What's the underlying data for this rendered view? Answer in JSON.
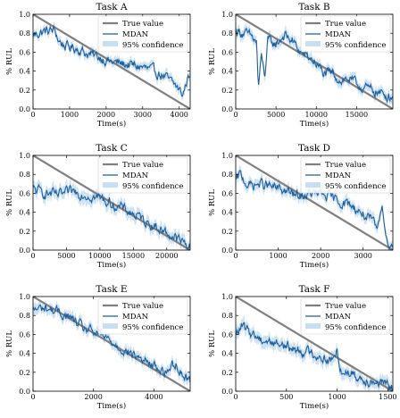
{
  "colors": {
    "true_value": "#7f7f7f",
    "mdan": "#1f5f9b",
    "confidence": "#c8dff2"
  },
  "chart_data": [
    {
      "type": "line",
      "title": "Task A",
      "xlabel": "Time(s)",
      "ylabel": "% RUL",
      "xlim": [
        0,
        4300
      ],
      "ylim": [
        0,
        1.0
      ],
      "xticks": [
        0,
        1000,
        2000,
        3000,
        4000
      ],
      "yticks": [
        0.0,
        0.2,
        0.4,
        0.6,
        0.8,
        1.0
      ],
      "grid": false,
      "legend": "top-right",
      "series": [
        {
          "name": "True value",
          "x": [
            0,
            4300
          ],
          "y": [
            1.0,
            0.0
          ]
        },
        {
          "name": "MDAN",
          "x": [
            0,
            300,
            600,
            700,
            900,
            1200,
            1500,
            1800,
            2100,
            2400,
            2700,
            3000,
            3300,
            3600,
            3900,
            4100,
            4200,
            4300
          ],
          "y": [
            0.78,
            0.82,
            0.83,
            0.72,
            0.66,
            0.64,
            0.58,
            0.55,
            0.5,
            0.48,
            0.46,
            0.44,
            0.4,
            0.34,
            0.25,
            0.15,
            0.28,
            0.4
          ]
        },
        {
          "name": "95% confidence",
          "band_halfwidth": 0.05
        }
      ]
    },
    {
      "type": "line",
      "title": "Task B",
      "xlabel": "Time(s)",
      "ylabel": "% RUL",
      "xlim": [
        0,
        19500
      ],
      "ylim": [
        0,
        1.0
      ],
      "xticks": [
        0,
        5000,
        10000,
        15000
      ],
      "yticks": [
        0.0,
        0.2,
        0.4,
        0.6,
        0.8,
        1.0
      ],
      "grid": false,
      "legend": "top-right",
      "series": [
        {
          "name": "True value",
          "x": [
            0,
            19500
          ],
          "y": [
            1.0,
            0.0
          ]
        },
        {
          "name": "MDAN",
          "x": [
            0,
            1000,
            2000,
            2600,
            2800,
            3200,
            3600,
            4000,
            5000,
            6000,
            7000,
            8000,
            9000,
            10000,
            11000,
            12000,
            13000,
            14000,
            15000,
            16000,
            17000,
            18000,
            19500
          ],
          "y": [
            0.83,
            0.8,
            0.76,
            0.7,
            0.22,
            0.55,
            0.35,
            0.72,
            0.68,
            0.78,
            0.72,
            0.6,
            0.55,
            0.48,
            0.36,
            0.38,
            0.3,
            0.32,
            0.26,
            0.22,
            0.2,
            0.16,
            0.13
          ]
        },
        {
          "name": "95% confidence",
          "band_halfwidth": 0.06
        }
      ]
    },
    {
      "type": "line",
      "title": "Task C",
      "xlabel": "Time(s)",
      "ylabel": "% RUL",
      "xlim": [
        0,
        23500
      ],
      "ylim": [
        0,
        1.0
      ],
      "xticks": [
        0,
        5000,
        10000,
        15000,
        20000
      ],
      "yticks": [
        0.0,
        0.2,
        0.4,
        0.6,
        0.8,
        1.0
      ],
      "grid": false,
      "legend": "top-right",
      "series": [
        {
          "name": "True value",
          "x": [
            0,
            23500
          ],
          "y": [
            1.0,
            0.0
          ]
        },
        {
          "name": "MDAN",
          "x": [
            0,
            2000,
            4000,
            6000,
            8000,
            10000,
            12000,
            14000,
            16000,
            18000,
            20000,
            22000,
            23500
          ],
          "y": [
            0.64,
            0.6,
            0.58,
            0.62,
            0.58,
            0.55,
            0.48,
            0.42,
            0.34,
            0.26,
            0.18,
            0.1,
            0.03
          ]
        },
        {
          "name": "95% confidence",
          "band_halfwidth": 0.07
        }
      ]
    },
    {
      "type": "line",
      "title": "Task D",
      "xlabel": "Time(s)",
      "ylabel": "% RUL",
      "xlim": [
        0,
        3700
      ],
      "ylim": [
        0,
        1.0
      ],
      "xticks": [
        0,
        1000,
        2000,
        3000
      ],
      "yticks": [
        0.0,
        0.2,
        0.4,
        0.6,
        0.8,
        1.0
      ],
      "grid": false,
      "legend": "top-right",
      "series": [
        {
          "name": "True value",
          "x": [
            0,
            3700
          ],
          "y": [
            1.0,
            0.0
          ]
        },
        {
          "name": "MDAN",
          "x": [
            0,
            100,
            300,
            600,
            900,
            1200,
            1500,
            1800,
            2100,
            2400,
            2700,
            3000,
            3200,
            3350,
            3450,
            3550,
            3700
          ],
          "y": [
            0.72,
            0.8,
            0.68,
            0.7,
            0.66,
            0.62,
            0.56,
            0.6,
            0.58,
            0.52,
            0.48,
            0.38,
            0.3,
            0.22,
            0.52,
            0.1,
            0.05
          ]
        },
        {
          "name": "95% confidence",
          "band_halfwidth": 0.06
        }
      ]
    },
    {
      "type": "line",
      "title": "Task E",
      "xlabel": "Time(s)",
      "ylabel": "% RUL",
      "xlim": [
        0,
        5200
      ],
      "ylim": [
        0,
        1.0
      ],
      "xticks": [
        0,
        2000,
        4000
      ],
      "yticks": [
        0.0,
        0.2,
        0.4,
        0.6,
        0.8,
        1.0
      ],
      "grid": false,
      "legend": "top-right",
      "series": [
        {
          "name": "True value",
          "x": [
            0,
            5200
          ],
          "y": [
            1.0,
            0.0
          ]
        },
        {
          "name": "MDAN",
          "x": [
            0,
            400,
            800,
            1200,
            1600,
            2000,
            2400,
            2800,
            3200,
            3600,
            4000,
            4400,
            4700,
            5000,
            5200
          ],
          "y": [
            0.86,
            0.88,
            0.84,
            0.78,
            0.68,
            0.62,
            0.56,
            0.48,
            0.4,
            0.34,
            0.26,
            0.2,
            0.3,
            0.16,
            0.12
          ]
        },
        {
          "name": "95% confidence",
          "band_halfwidth": 0.06
        }
      ]
    },
    {
      "type": "line",
      "title": "Task F",
      "xlabel": "Time(s)",
      "ylabel": "% RUL",
      "xlim": [
        0,
        1550
      ],
      "ylim": [
        0,
        1.0
      ],
      "xticks": [
        0,
        500,
        1000,
        1500
      ],
      "yticks": [
        0.0,
        0.2,
        0.4,
        0.6,
        0.8,
        1.0
      ],
      "grid": false,
      "legend": "top-right",
      "series": [
        {
          "name": "True value",
          "x": [
            0,
            1550
          ],
          "y": [
            1.0,
            0.0
          ]
        },
        {
          "name": "MDAN",
          "x": [
            0,
            60,
            150,
            250,
            350,
            450,
            550,
            650,
            750,
            850,
            950,
            1000,
            1050,
            1100,
            1200,
            1300,
            1400,
            1500,
            1550
          ],
          "y": [
            0.6,
            0.68,
            0.62,
            0.55,
            0.52,
            0.5,
            0.45,
            0.43,
            0.4,
            0.36,
            0.32,
            0.42,
            0.18,
            0.22,
            0.15,
            0.12,
            0.1,
            0.05,
            0.02
          ]
        },
        {
          "name": "95% confidence",
          "band_halfwidth": 0.07
        }
      ]
    }
  ]
}
